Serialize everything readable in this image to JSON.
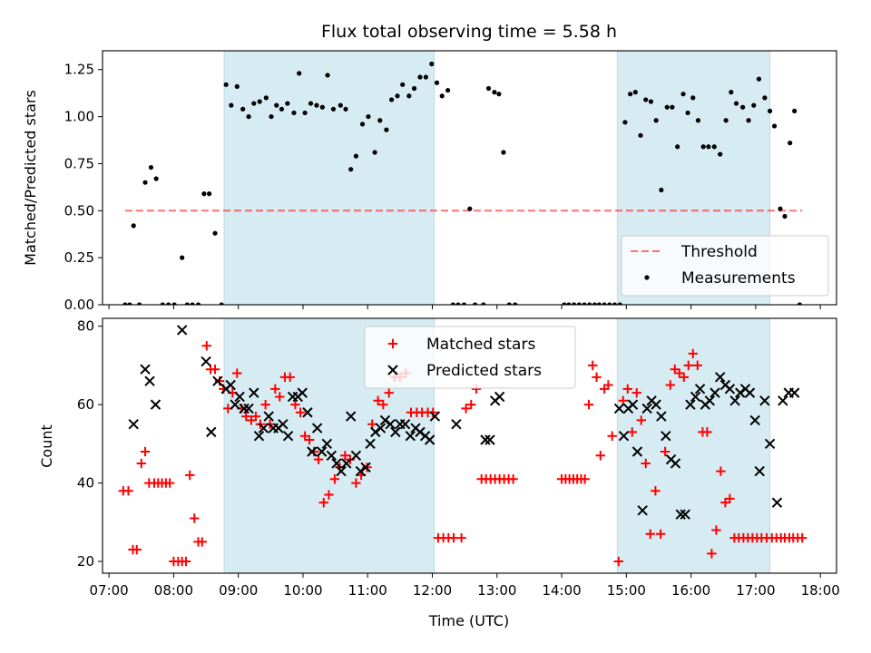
{
  "title": "Flux total observing time = 5.58 h",
  "colors": {
    "shade": "#add8e6",
    "threshold": "#ff0000",
    "matched": "#ff0000",
    "predicted": "#000000",
    "measurement": "#000000"
  },
  "chart_data": [
    {
      "type": "scatter",
      "ylabel": "Matched/Predicted stars",
      "ylim": [
        0,
        1.35
      ],
      "yticks": [
        0,
        0.25,
        0.5,
        0.75,
        1.0,
        1.25
      ],
      "ytick_labels": [
        "0.00",
        "0.25",
        "0.50",
        "0.75",
        "1.00",
        "1.25"
      ],
      "xlim": [
        6.9,
        18.25
      ],
      "xticks": [
        7,
        8,
        9,
        10,
        11,
        12,
        13,
        14,
        15,
        16,
        17,
        18
      ],
      "shaded_intervals": [
        [
          8.78,
          12.03
        ],
        [
          14.86,
          17.22
        ]
      ],
      "threshold": {
        "name": "Threshold",
        "y": 0.5,
        "x": [
          7.25,
          17.72
        ]
      },
      "legend": {
        "placement": "lower-right",
        "entries": [
          "Threshold",
          "Measurements"
        ]
      },
      "series": [
        {
          "name": "Measurements",
          "x": [
            7.25,
            7.32,
            7.38,
            7.47,
            7.56,
            7.65,
            7.73,
            7.83,
            7.92,
            8.01,
            8.13,
            8.21,
            8.29,
            8.38,
            8.47,
            8.55,
            8.64,
            8.74,
            8.81,
            8.89,
            8.98,
            9.07,
            9.16,
            9.24,
            9.33,
            9.43,
            9.51,
            9.59,
            9.67,
            9.76,
            9.86,
            9.94,
            10.03,
            10.12,
            10.21,
            10.3,
            10.38,
            10.47,
            10.58,
            10.66,
            10.74,
            10.82,
            10.92,
            11.01,
            11.11,
            11.19,
            11.29,
            11.37,
            11.46,
            11.54,
            11.64,
            11.72,
            11.81,
            11.9,
            11.99,
            12.07,
            12.15,
            12.24,
            12.32,
            12.4,
            12.49,
            12.58,
            12.66,
            12.79,
            12.87,
            12.96,
            13.03,
            13.1,
            13.19,
            13.28,
            14.04,
            14.11,
            14.19,
            14.27,
            14.35,
            14.43,
            14.51,
            14.58,
            14.66,
            14.74,
            14.82,
            14.9,
            14.98,
            15.06,
            15.14,
            15.22,
            15.3,
            15.38,
            15.46,
            15.54,
            15.63,
            15.71,
            15.79,
            15.88,
            15.95,
            16.03,
            16.11,
            16.19,
            16.27,
            16.36,
            16.45,
            16.54,
            16.62,
            16.7,
            16.8,
            16.89,
            16.97,
            17.05,
            17.14,
            17.22,
            17.29,
            17.38,
            17.45,
            17.53,
            17.6,
            17.68
          ],
          "y": [
            0,
            0,
            0.42,
            0,
            0.65,
            0.73,
            0.67,
            0,
            0,
            0,
            0.25,
            0,
            0,
            0,
            0.59,
            0.59,
            0.38,
            0,
            1.17,
            1.06,
            1.16,
            1.04,
            1.0,
            1.07,
            1.08,
            1.1,
            1.0,
            1.06,
            1.04,
            1.07,
            1.02,
            1.23,
            1.02,
            1.07,
            1.06,
            1.05,
            1.22,
            1.04,
            1.06,
            1.04,
            0.72,
            0.79,
            0.96,
            1.0,
            0.81,
            0.98,
            0.93,
            1.09,
            1.11,
            1.17,
            1.11,
            1.15,
            1.21,
            1.21,
            1.28,
            1.18,
            1.11,
            1.14,
            0,
            0,
            0,
            0.51,
            0,
            0,
            1.15,
            1.13,
            1.12,
            0.81,
            0,
            0,
            0,
            0,
            0,
            0,
            0,
            0,
            0,
            0,
            0,
            0,
            0,
            0,
            0.97,
            1.12,
            1.13,
            0.9,
            1.09,
            1.08,
            0.98,
            0.61,
            1.05,
            1.05,
            0.84,
            1.12,
            1.02,
            1.1,
            0.98,
            0.84,
            0.84,
            0.84,
            0.8,
            0.98,
            1.13,
            1.07,
            1.05,
            0.98,
            1.06,
            1.2,
            1.1,
            1.03,
            0.95,
            0.51,
            0.47,
            0.86,
            1.03,
            0
          ]
        }
      ]
    },
    {
      "type": "scatter",
      "ylabel": "Count",
      "xlabel": "Time (UTC)",
      "ylim": [
        17,
        82
      ],
      "yticks": [
        20,
        40,
        60,
        80
      ],
      "xlim": [
        6.9,
        18.25
      ],
      "xticks": [
        7,
        8,
        9,
        10,
        11,
        12,
        13,
        14,
        15,
        16,
        17,
        18
      ],
      "xtick_labels": [
        "07:00",
        "08:00",
        "09:00",
        "10:00",
        "11:00",
        "12:00",
        "13:00",
        "14:00",
        "15:00",
        "16:00",
        "17:00",
        "18:00"
      ],
      "shaded_intervals": [
        [
          8.78,
          12.03
        ],
        [
          14.86,
          17.22
        ]
      ],
      "legend": {
        "placement": "top-center",
        "entries": [
          "Matched stars",
          "Predicted stars"
        ]
      },
      "series": [
        {
          "name": "Matched stars",
          "marker": "plus",
          "x": [
            7.22,
            7.3,
            7.37,
            7.43,
            7.5,
            7.56,
            7.62,
            7.7,
            7.76,
            7.82,
            7.88,
            7.94,
            8.0,
            8.07,
            8.13,
            8.19,
            8.25,
            8.32,
            8.38,
            8.44,
            8.51,
            8.57,
            8.64,
            8.71,
            8.77,
            8.84,
            8.91,
            8.98,
            9.05,
            9.12,
            9.2,
            9.27,
            9.34,
            9.42,
            9.49,
            9.57,
            9.64,
            9.72,
            9.8,
            9.88,
            9.96,
            10.03,
            10.1,
            10.17,
            10.24,
            10.32,
            10.4,
            10.49,
            10.57,
            10.65,
            10.73,
            10.82,
            10.9,
            10.99,
            11.07,
            11.16,
            11.24,
            11.33,
            11.42,
            11.5,
            11.59,
            11.67,
            11.76,
            11.84,
            11.93,
            12.01,
            12.09,
            12.17,
            12.25,
            12.33,
            12.45,
            12.52,
            12.6,
            12.68,
            12.76,
            12.83,
            12.9,
            12.97,
            13.04,
            13.11,
            13.18,
            13.25,
            14.0,
            14.06,
            14.12,
            14.18,
            14.24,
            14.3,
            14.36,
            14.42,
            14.48,
            14.54,
            14.6,
            14.66,
            14.72,
            14.78,
            14.88,
            14.95,
            15.02,
            15.09,
            15.16,
            15.23,
            15.3,
            15.37,
            15.45,
            15.53,
            15.6,
            15.68,
            15.75,
            15.82,
            15.89,
            15.96,
            16.03,
            16.1,
            16.18,
            16.25,
            16.32,
            16.39,
            16.46,
            16.53,
            16.6,
            16.67,
            16.74,
            16.81,
            16.88,
            16.95,
            17.02,
            17.09,
            17.17,
            17.25,
            17.32,
            17.39,
            17.45,
            17.52,
            17.58,
            17.65,
            17.72
          ],
          "y": [
            38,
            38,
            23,
            23,
            45,
            48,
            40,
            40,
            40,
            40,
            40,
            40,
            20,
            20,
            20,
            20,
            42,
            31,
            25,
            25,
            75,
            69,
            69,
            66,
            64,
            59,
            63,
            68,
            59,
            57,
            56,
            57,
            55,
            60,
            55,
            64,
            62,
            67,
            67,
            60,
            58,
            52,
            51,
            48,
            46,
            35,
            37,
            41,
            44,
            47,
            46,
            40,
            42,
            44,
            55,
            61,
            60,
            63,
            67,
            67,
            68,
            58,
            58,
            58,
            58,
            58,
            26,
            26,
            26,
            26,
            26,
            59,
            60,
            64,
            41,
            41,
            41,
            41,
            41,
            41,
            41,
            41,
            41,
            41,
            41,
            41,
            41,
            41,
            41,
            60,
            70,
            67,
            47,
            64,
            65,
            52,
            20,
            61,
            64,
            53,
            63,
            56,
            45,
            27,
            38,
            27,
            48,
            65,
            69,
            68,
            67,
            70,
            73,
            70,
            53,
            53,
            22,
            28,
            43,
            35,
            36,
            26,
            26,
            26,
            26,
            26,
            26,
            26,
            26,
            26,
            26,
            26,
            26,
            26,
            26,
            26,
            26
          ],
          "note_unused": ""
        },
        {
          "name": "Predicted stars",
          "marker": "x",
          "x": [
            7.38,
            7.56,
            7.63,
            7.72,
            8.13,
            8.5,
            8.58,
            8.68,
            8.81,
            8.88,
            8.95,
            9.02,
            9.09,
            9.16,
            9.24,
            9.32,
            9.39,
            9.47,
            9.54,
            9.62,
            9.69,
            9.77,
            9.84,
            9.92,
            9.99,
            10.07,
            10.14,
            10.22,
            10.29,
            10.37,
            10.44,
            10.52,
            10.59,
            10.67,
            10.74,
            10.82,
            10.89,
            10.97,
            11.04,
            11.12,
            11.2,
            11.27,
            11.35,
            11.43,
            11.5,
            11.58,
            11.66,
            11.74,
            11.81,
            11.89,
            11.96,
            12.04,
            12.37,
            12.82,
            12.89,
            12.97,
            13.04,
            14.89,
            14.96,
            15.03,
            15.1,
            15.17,
            15.25,
            15.32,
            15.39,
            15.46,
            15.54,
            15.61,
            15.69,
            15.76,
            15.84,
            15.91,
            15.99,
            16.07,
            16.14,
            16.22,
            16.29,
            16.37,
            16.45,
            16.53,
            16.6,
            16.68,
            16.76,
            16.84,
            16.91,
            16.99,
            17.06,
            17.14,
            17.22,
            17.33,
            17.42,
            17.51,
            17.6
          ],
          "y": [
            55,
            69,
            66,
            60,
            79,
            71,
            53,
            66,
            64,
            65,
            60,
            62,
            59,
            59,
            63,
            52,
            54,
            57,
            54,
            54,
            55,
            52,
            62,
            62,
            63,
            58,
            48,
            54,
            48,
            50,
            47,
            45,
            43,
            45,
            57,
            47,
            43,
            44,
            50,
            53,
            54,
            56,
            55,
            53,
            55,
            55,
            52,
            54,
            53,
            52,
            51,
            57,
            55,
            51,
            51,
            61,
            62,
            59,
            52,
            59,
            60,
            48,
            33,
            59,
            61,
            60,
            57,
            52,
            46,
            45,
            32,
            32,
            60,
            62,
            64,
            60,
            61,
            63,
            67,
            65,
            64,
            61,
            63,
            64,
            63,
            56,
            43,
            61,
            50,
            35,
            61,
            63,
            63
          ]
        }
      ]
    }
  ]
}
